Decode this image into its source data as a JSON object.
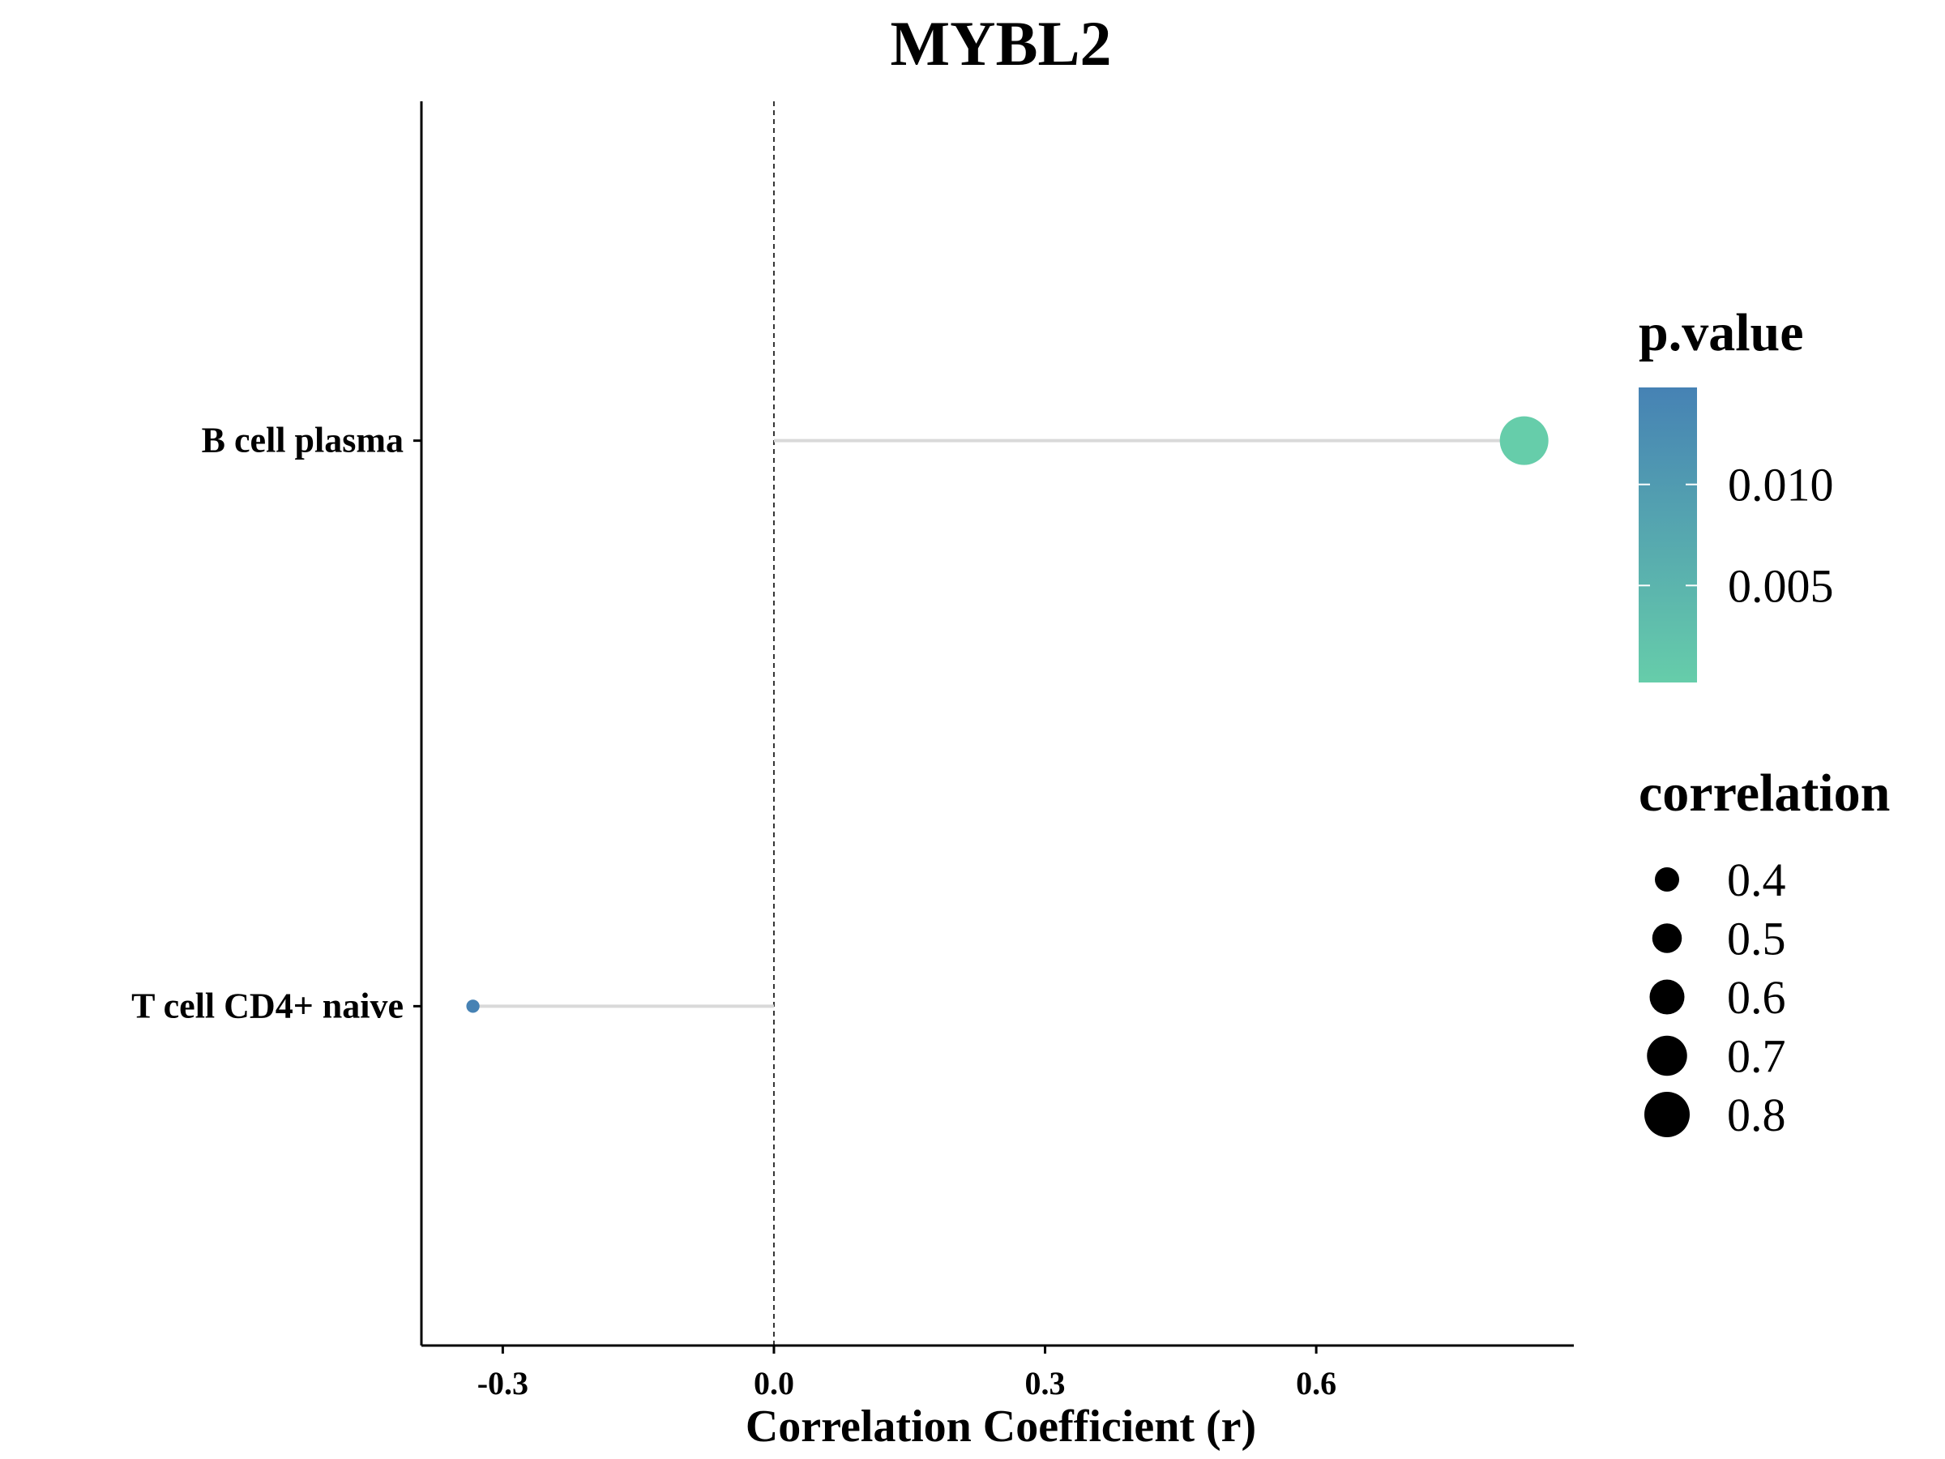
{
  "chart_data": {
    "type": "lollipop",
    "title": "MYBL2",
    "xlabel": "Correlation Coefficient (r)",
    "ylabel": "",
    "xlim": [
      -0.39,
      0.885
    ],
    "x_ticks": [
      -0.3,
      0.0,
      0.3,
      0.6
    ],
    "x_tick_labels": [
      "-0.3",
      "0.0",
      "0.3",
      "0.6"
    ],
    "reference_line_x": 0.0,
    "categories": [
      "B cell plasma",
      "T cell CD4+ naive"
    ],
    "points": [
      {
        "category": "B cell plasma",
        "correlation": 0.83,
        "p_value": 0.0002,
        "color": "#66CDAA"
      },
      {
        "category": "T cell CD4+ naive",
        "correlation": -0.333,
        "p_value": 0.0148,
        "color": "#4682B4"
      }
    ],
    "color_legend": {
      "title": "p.value",
      "low_color": "#66CDAA",
      "high_color": "#4682B4",
      "range": [
        0.0002,
        0.0148
      ],
      "ticks": [
        0.01,
        0.005
      ],
      "tick_labels": [
        "0.010",
        "0.005"
      ]
    },
    "size_legend": {
      "title": "correlation",
      "values": [
        0.4,
        0.5,
        0.6,
        0.7,
        0.8
      ],
      "labels": [
        "0.4",
        "0.5",
        "0.6",
        "0.7",
        "0.8"
      ]
    },
    "segment_color": "#D9D9D9",
    "grid": false,
    "legend_position": "right"
  }
}
